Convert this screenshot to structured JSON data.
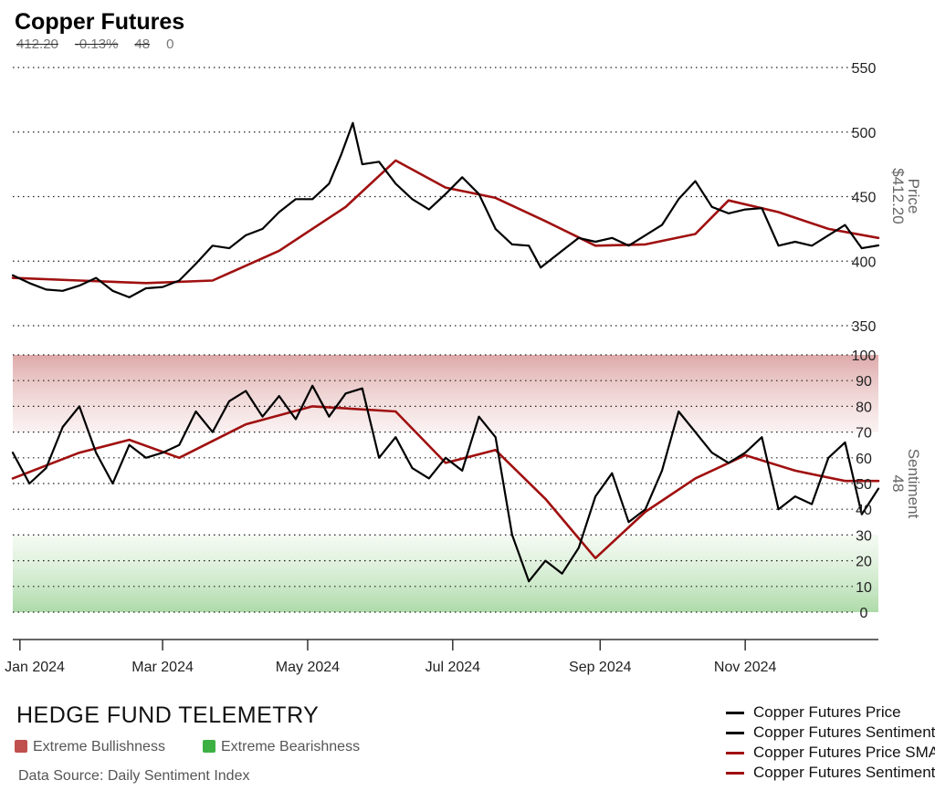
{
  "header": {
    "title": "Copper Futures",
    "price": "412.20",
    "change_pct": "-0.13%",
    "sentiment": "48",
    "sentiment_change": "0"
  },
  "footer": {
    "brand": "HEDGE FUND TELEMETRY",
    "zone_bull": "Extreme Bullishness",
    "zone_bear": "Extreme Bearishness",
    "source": "Data Source: Daily Sentiment Index"
  },
  "colors": {
    "price_line": "#000000",
    "sma_line": "#a01010",
    "bull_zone": "#c0504d",
    "bear_zone": "#3cb043"
  },
  "chart_data": [
    {
      "type": "line",
      "name": "price-panel",
      "ylabel": "Price",
      "ylabel_value": "$412.20",
      "ylim": [
        350,
        550
      ],
      "yticks": [
        350,
        400,
        450,
        500,
        550
      ],
      "x_ticks": [
        "Jan 2024",
        "Mar 2024",
        "May 2024",
        "Jul 2024",
        "Sep 2024",
        "Nov 2024"
      ],
      "x_tick_dates": [
        "2024-01-01",
        "2024-03-01",
        "2024-05-01",
        "2024-07-01",
        "2024-09-01",
        "2024-11-01"
      ],
      "x_range": [
        "2023-12-29",
        "2024-12-27"
      ],
      "series": [
        {
          "name": "Copper Futures Price",
          "x": [
            "2023-12-29",
            "2024-01-05",
            "2024-01-12",
            "2024-01-19",
            "2024-01-26",
            "2024-02-02",
            "2024-02-09",
            "2024-02-16",
            "2024-02-23",
            "2024-03-01",
            "2024-03-08",
            "2024-03-15",
            "2024-03-22",
            "2024-03-29",
            "2024-04-05",
            "2024-04-12",
            "2024-04-19",
            "2024-04-26",
            "2024-05-03",
            "2024-05-10",
            "2024-05-15",
            "2024-05-20",
            "2024-05-24",
            "2024-05-31",
            "2024-06-07",
            "2024-06-14",
            "2024-06-21",
            "2024-06-28",
            "2024-07-05",
            "2024-07-12",
            "2024-07-19",
            "2024-07-26",
            "2024-08-02",
            "2024-08-07",
            "2024-08-16",
            "2024-08-23",
            "2024-08-30",
            "2024-09-06",
            "2024-09-13",
            "2024-09-20",
            "2024-09-27",
            "2024-10-04",
            "2024-10-11",
            "2024-10-18",
            "2024-10-25",
            "2024-11-01",
            "2024-11-08",
            "2024-11-15",
            "2024-11-22",
            "2024-11-29",
            "2024-12-06",
            "2024-12-13",
            "2024-12-20",
            "2024-12-27"
          ],
          "values": [
            389,
            383,
            378,
            377,
            381,
            387,
            377,
            372,
            379,
            380,
            385,
            398,
            412,
            410,
            420,
            425,
            438,
            448,
            448,
            460,
            482,
            507,
            475,
            477,
            460,
            448,
            440,
            452,
            465,
            452,
            425,
            413,
            412,
            395,
            408,
            418,
            415,
            418,
            412,
            420,
            428,
            448,
            462,
            442,
            437,
            440,
            441,
            412,
            415,
            412,
            420,
            428,
            410,
            412.2
          ]
        },
        {
          "name": "Copper Futures Price SMA",
          "x": [
            "2023-12-29",
            "2024-01-26",
            "2024-02-23",
            "2024-03-22",
            "2024-04-19",
            "2024-05-17",
            "2024-06-07",
            "2024-06-28",
            "2024-07-19",
            "2024-08-09",
            "2024-08-30",
            "2024-09-20",
            "2024-10-11",
            "2024-10-25",
            "2024-11-15",
            "2024-12-06",
            "2024-12-27"
          ],
          "values": [
            387,
            385,
            383,
            385,
            408,
            442,
            478,
            457,
            449,
            431,
            412,
            413,
            421,
            447,
            438,
            425,
            418
          ]
        }
      ]
    },
    {
      "type": "line",
      "name": "sentiment-panel",
      "ylabel": "Sentiment",
      "ylabel_value": "48",
      "ylim": [
        0,
        100
      ],
      "yticks": [
        0,
        10,
        20,
        30,
        40,
        50,
        60,
        70,
        80,
        90,
        100
      ],
      "zones": [
        {
          "label": "Extreme Bullishness",
          "from": 70,
          "to": 100
        },
        {
          "label": "Extreme Bearishness",
          "from": 0,
          "to": 30
        }
      ],
      "series": [
        {
          "name": "Copper Futures Sentiment",
          "x": [
            "2023-12-29",
            "2024-01-05",
            "2024-01-12",
            "2024-01-19",
            "2024-01-26",
            "2024-02-02",
            "2024-02-09",
            "2024-02-16",
            "2024-02-23",
            "2024-03-01",
            "2024-03-08",
            "2024-03-15",
            "2024-03-22",
            "2024-03-29",
            "2024-04-05",
            "2024-04-12",
            "2024-04-19",
            "2024-04-26",
            "2024-05-03",
            "2024-05-10",
            "2024-05-17",
            "2024-05-24",
            "2024-05-31",
            "2024-06-07",
            "2024-06-14",
            "2024-06-21",
            "2024-06-28",
            "2024-07-05",
            "2024-07-12",
            "2024-07-19",
            "2024-07-26",
            "2024-08-02",
            "2024-08-09",
            "2024-08-16",
            "2024-08-23",
            "2024-08-30",
            "2024-09-06",
            "2024-09-13",
            "2024-09-20",
            "2024-09-27",
            "2024-10-04",
            "2024-10-11",
            "2024-10-18",
            "2024-10-25",
            "2024-11-01",
            "2024-11-08",
            "2024-11-15",
            "2024-11-22",
            "2024-11-29",
            "2024-12-06",
            "2024-12-13",
            "2024-12-20",
            "2024-12-27"
          ],
          "values": [
            62,
            50,
            56,
            72,
            80,
            62,
            50,
            65,
            60,
            62,
            65,
            78,
            70,
            82,
            86,
            76,
            84,
            75,
            88,
            76,
            85,
            87,
            60,
            68,
            56,
            52,
            60,
            55,
            76,
            68,
            30,
            12,
            20,
            15,
            25,
            45,
            54,
            35,
            40,
            55,
            78,
            70,
            62,
            58,
            62,
            68,
            40,
            45,
            42,
            60,
            66,
            38,
            48
          ]
        },
        {
          "name": "Copper Futures Sentiment SMA",
          "x": [
            "2023-12-29",
            "2024-01-26",
            "2024-02-16",
            "2024-03-08",
            "2024-04-05",
            "2024-05-03",
            "2024-06-07",
            "2024-06-28",
            "2024-07-19",
            "2024-08-09",
            "2024-08-30",
            "2024-09-20",
            "2024-10-11",
            "2024-11-01",
            "2024-11-22",
            "2024-12-13",
            "2024-12-27"
          ],
          "values": [
            52,
            62,
            67,
            60,
            73,
            80,
            78,
            58,
            63,
            44,
            21,
            39,
            52,
            61,
            55,
            51,
            51
          ]
        }
      ]
    }
  ]
}
